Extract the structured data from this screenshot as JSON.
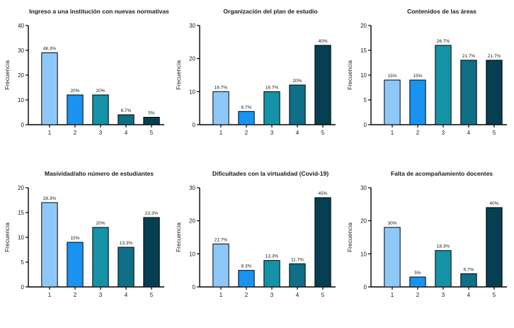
{
  "chart_data": [
    {
      "type": "bar",
      "title": "Ingreso a una institución con nuevas normativas",
      "xlabel": "",
      "ylabel": "Frecuencia",
      "categories": [
        "1",
        "2",
        "3",
        "4",
        "5"
      ],
      "values": [
        29,
        12,
        12,
        4,
        3
      ],
      "data_labels": [
        "48.3%",
        "20%",
        "20%",
        "6.7%",
        "5%"
      ],
      "ylim": [
        0,
        40
      ],
      "yticks": [
        "0",
        "10",
        "20",
        "30",
        "40"
      ],
      "grid": false,
      "legend": "none"
    },
    {
      "type": "bar",
      "title": "Organización del plan de estudio",
      "xlabel": "",
      "ylabel": "Frecuencia",
      "categories": [
        "1",
        "2",
        "3",
        "4",
        "5"
      ],
      "values": [
        10,
        4,
        10,
        12,
        24
      ],
      "data_labels": [
        "16.7%",
        "6.7%",
        "16.7%",
        "20%",
        "40%"
      ],
      "ylim": [
        0,
        30
      ],
      "yticks": [
        "0",
        "10",
        "20",
        "30"
      ],
      "grid": false,
      "legend": "none"
    },
    {
      "type": "bar",
      "title": "Contenidos de las áreas",
      "xlabel": "",
      "ylabel": "Frecuencia",
      "categories": [
        "1",
        "2",
        "3",
        "4",
        "5"
      ],
      "values": [
        9,
        9,
        16,
        13,
        13
      ],
      "data_labels": [
        "15%",
        "15%",
        "26.7%",
        "21.7%",
        "21.7%"
      ],
      "ylim": [
        0,
        20
      ],
      "yticks": [
        "0",
        "5",
        "10",
        "15",
        "20"
      ],
      "grid": false,
      "legend": "none"
    },
    {
      "type": "bar",
      "title": "Masividad/alto número de estudiantes",
      "xlabel": "",
      "ylabel": "Frecuencia",
      "categories": [
        "1",
        "2",
        "3",
        "4",
        "5"
      ],
      "values": [
        17,
        9,
        12,
        8,
        14
      ],
      "data_labels": [
        "28.3%",
        "15%",
        "20%",
        "13.3%",
        "23.3%"
      ],
      "ylim": [
        0,
        20
      ],
      "yticks": [
        "0",
        "5",
        "10",
        "15",
        "20"
      ],
      "grid": false,
      "legend": "none"
    },
    {
      "type": "bar",
      "title": "Dificultades con la virtualidad (Covid-19)",
      "xlabel": "",
      "ylabel": "Frecuencia",
      "categories": [
        "1",
        "2",
        "3",
        "4",
        "5"
      ],
      "values": [
        13,
        5,
        8,
        7,
        27
      ],
      "data_labels": [
        "21.7%",
        "8.3%",
        "13.3%",
        "11.7%",
        "45%"
      ],
      "ylim": [
        0,
        30
      ],
      "yticks": [
        "0",
        "10",
        "20",
        "30"
      ],
      "grid": false,
      "legend": "none"
    },
    {
      "type": "bar",
      "title": "Falta de acompañamiento docentes",
      "xlabel": "",
      "ylabel": "Frecuencia",
      "categories": [
        "1",
        "2",
        "3",
        "4",
        "5"
      ],
      "values": [
        18,
        3,
        11,
        4,
        24
      ],
      "data_labels": [
        "30%",
        "5%",
        "18.3%",
        "6.7%",
        "40%"
      ],
      "ylim": [
        0,
        30
      ],
      "yticks": [
        "0",
        "10",
        "20",
        "30"
      ],
      "grid": false,
      "legend": "none"
    }
  ],
  "colors": {
    "bars": [
      "#8ec8f8",
      "#1a93f0",
      "#1592a6",
      "#0f6f87",
      "#073f52"
    ],
    "axis": "#000000",
    "text": "#1a1a1a"
  }
}
